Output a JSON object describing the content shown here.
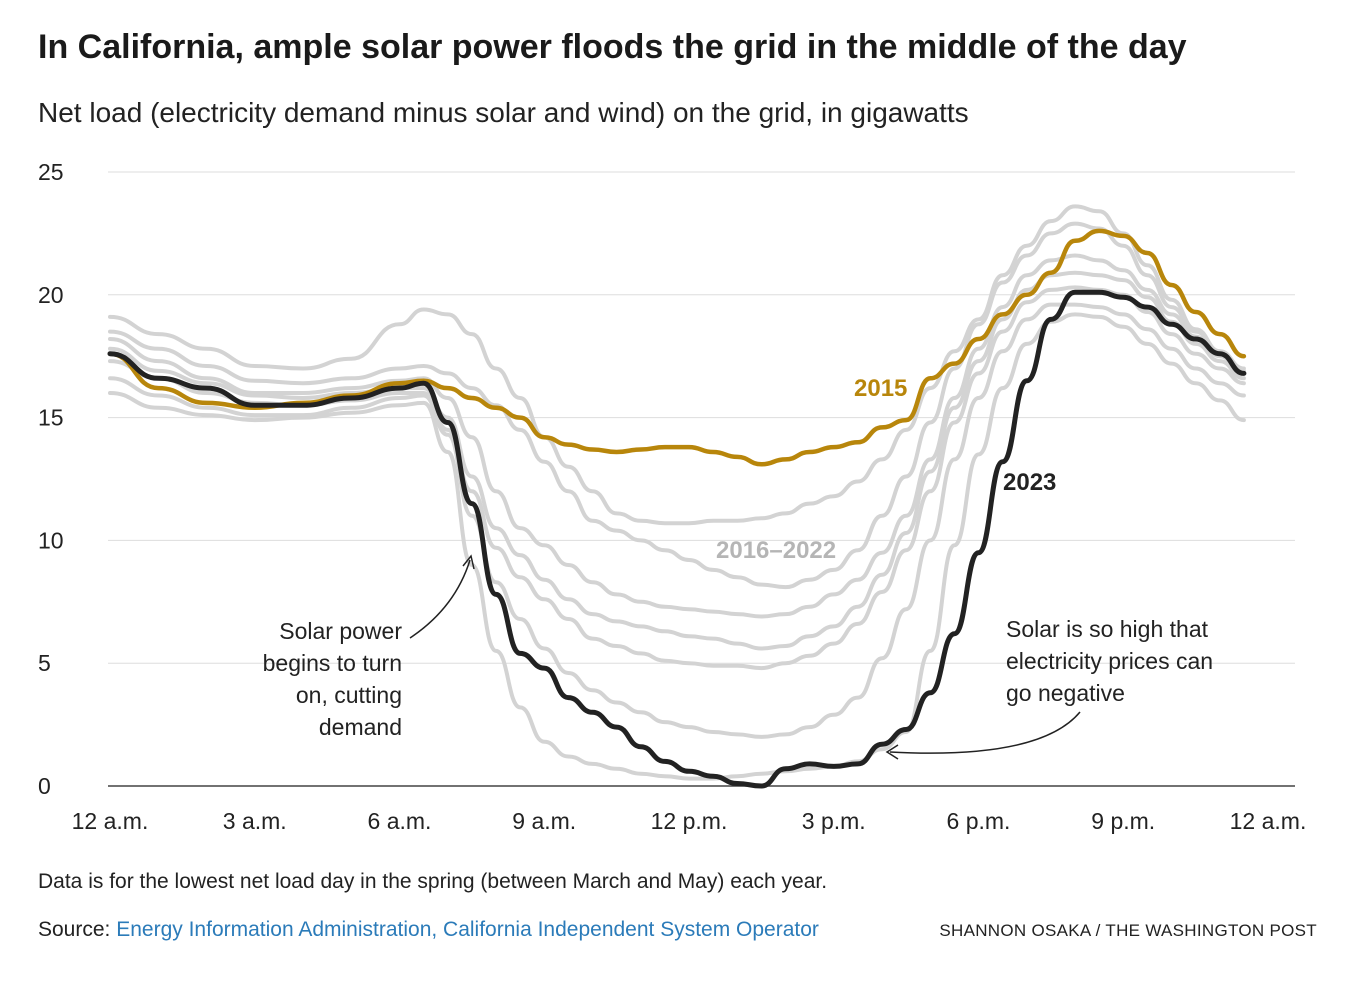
{
  "header": {
    "title": "In California, ample solar power floods the grid in the middle of the day",
    "subtitle": "Net load (electricity demand minus solar and wind) on the grid, in gigawatts"
  },
  "footer": {
    "note": "Data is for the lowest net load day in the spring (between March and May) each year.",
    "source_prefix": "Source: ",
    "source_link": "Energy Information Administration, California Independent System Operator",
    "credit": "SHANNON OSAKA / THE WASHINGTON POST"
  },
  "colors": {
    "line_2015": "#b8860b",
    "line_2023": "#222222",
    "line_other": "#d3d3d3",
    "grid": "#dddddd",
    "label_other": "#b5b5b5"
  },
  "chart_data": {
    "type": "line",
    "title": "In California, ample solar power floods the grid in the middle of the day",
    "subtitle": "Net load (electricity demand minus solar and wind) on the grid, in gigawatts",
    "xlabel": "",
    "ylabel": "",
    "x_unit": "hours after midnight",
    "xlim": [
      0,
      24
    ],
    "ylim": [
      0,
      25
    ],
    "x_ticks": [
      {
        "value": 0,
        "label": "12 a.m."
      },
      {
        "value": 3,
        "label": "3 a.m."
      },
      {
        "value": 6,
        "label": "6 a.m."
      },
      {
        "value": 9,
        "label": "9 a.m."
      },
      {
        "value": 12,
        "label": "12 p.m."
      },
      {
        "value": 15,
        "label": "3 p.m."
      },
      {
        "value": 18,
        "label": "6 p.m."
      },
      {
        "value": 21,
        "label": "9 p.m."
      },
      {
        "value": 24,
        "label": "12 a.m."
      }
    ],
    "y_ticks": [
      0,
      5,
      10,
      15,
      20,
      25
    ],
    "grid": true,
    "series_labels": {
      "2015": "2015",
      "2023": "2023",
      "2016_2022": "2016–2022"
    },
    "x": [
      0,
      1,
      2,
      3,
      4,
      5,
      6,
      6.5,
      7,
      7.5,
      8,
      8.5,
      9,
      9.5,
      10,
      10.5,
      11,
      11.5,
      12,
      12.5,
      13,
      13.5,
      14,
      14.5,
      15,
      15.5,
      16,
      16.5,
      17,
      17.5,
      18,
      18.5,
      19,
      19.5,
      20,
      20.5,
      21,
      21.5,
      22,
      22.5,
      23,
      23.5
    ],
    "series": [
      {
        "key": "2015",
        "emphasis": "gold",
        "values": [
          17.6,
          16.2,
          15.6,
          15.4,
          15.6,
          15.9,
          16.4,
          16.5,
          16.2,
          15.8,
          15.4,
          15.0,
          14.2,
          13.9,
          13.7,
          13.6,
          13.7,
          13.8,
          13.8,
          13.6,
          13.4,
          13.1,
          13.3,
          13.6,
          13.8,
          14.0,
          14.6,
          14.9,
          16.6,
          17.2,
          18.2,
          19.2,
          20.0,
          20.9,
          22.2,
          22.6,
          22.4,
          21.7,
          20.4,
          19.3,
          18.4,
          17.5
        ]
      },
      {
        "key": "2023",
        "emphasis": "black",
        "values": [
          17.6,
          16.6,
          16.2,
          15.5,
          15.5,
          15.8,
          16.2,
          16.4,
          14.8,
          11.5,
          7.8,
          5.4,
          4.8,
          3.6,
          3.0,
          2.4,
          1.6,
          1.0,
          0.6,
          0.4,
          0.1,
          0.0,
          0.7,
          0.9,
          0.8,
          0.9,
          1.7,
          2.3,
          3.8,
          6.2,
          9.5,
          13.2,
          16.5,
          19.0,
          20.1,
          20.1,
          19.9,
          19.5,
          18.8,
          18.2,
          17.6,
          16.8
        ]
      },
      {
        "key": "other_1",
        "values": [
          19.1,
          18.4,
          17.8,
          17.1,
          17.0,
          17.4,
          18.8,
          19.4,
          19.2,
          18.4,
          17.0,
          15.8,
          14.2,
          13.0,
          12.0,
          11.1,
          10.8,
          10.7,
          10.7,
          10.8,
          10.8,
          10.9,
          11.1,
          11.5,
          11.8,
          12.4,
          13.3,
          14.5,
          16.2,
          17.7,
          19.0,
          20.8,
          22.0,
          23.0,
          23.6,
          23.4,
          22.5,
          21.2,
          19.8,
          18.6,
          17.7,
          17.0
        ]
      },
      {
        "key": "other_2",
        "values": [
          18.5,
          17.8,
          17.1,
          16.5,
          16.4,
          16.6,
          17.0,
          17.1,
          16.8,
          16.2,
          15.5,
          14.5,
          13.2,
          12.0,
          10.8,
          10.4,
          10.0,
          9.6,
          9.2,
          8.8,
          8.5,
          8.2,
          8.1,
          8.4,
          8.8,
          9.6,
          11.0,
          12.6,
          14.8,
          17.0,
          18.8,
          20.5,
          21.6,
          22.5,
          22.9,
          22.7,
          22.0,
          20.8,
          19.5,
          18.5,
          17.7,
          16.9
        ]
      },
      {
        "key": "other_3",
        "values": [
          18.2,
          17.3,
          16.6,
          16.0,
          16.0,
          16.2,
          16.5,
          16.6,
          15.8,
          14.2,
          12.0,
          10.5,
          9.8,
          9.0,
          8.3,
          7.8,
          7.5,
          7.3,
          7.2,
          7.1,
          7.0,
          6.9,
          7.0,
          7.3,
          7.8,
          8.4,
          9.5,
          11.0,
          13.3,
          15.8,
          17.8,
          19.5,
          20.8,
          21.4,
          21.6,
          21.4,
          21.0,
          20.2,
          19.2,
          18.3,
          17.5,
          16.8
        ]
      },
      {
        "key": "other_4",
        "values": [
          17.8,
          16.9,
          16.4,
          15.9,
          15.8,
          16.0,
          16.2,
          16.2,
          15.0,
          12.6,
          10.5,
          9.4,
          8.4,
          7.6,
          7.0,
          6.7,
          6.5,
          6.3,
          6.1,
          6.0,
          5.8,
          5.6,
          5.7,
          6.1,
          6.5,
          7.3,
          8.6,
          10.3,
          12.8,
          15.4,
          17.3,
          19.0,
          20.2,
          20.8,
          20.9,
          20.8,
          20.6,
          19.9,
          18.9,
          18.0,
          17.3,
          16.6
        ]
      },
      {
        "key": "other_5",
        "values": [
          17.3,
          16.6,
          16.0,
          15.6,
          15.5,
          15.7,
          16.0,
          16.0,
          14.5,
          12.0,
          9.7,
          8.5,
          7.6,
          6.8,
          6.0,
          5.7,
          5.4,
          5.1,
          5.0,
          4.9,
          4.9,
          4.8,
          5.0,
          5.3,
          5.8,
          6.6,
          7.9,
          9.6,
          12.0,
          14.8,
          16.8,
          18.5,
          19.7,
          20.2,
          20.3,
          20.2,
          20.0,
          19.3,
          18.4,
          17.6,
          17.0,
          16.4
        ]
      },
      {
        "key": "other_6",
        "values": [
          16.6,
          15.9,
          15.4,
          15.1,
          15.1,
          15.4,
          15.8,
          15.9,
          14.3,
          11.0,
          8.3,
          6.8,
          5.6,
          4.6,
          3.9,
          3.4,
          3.0,
          2.6,
          2.4,
          2.2,
          2.1,
          2.0,
          2.1,
          2.4,
          2.9,
          3.6,
          5.2,
          7.2,
          10.0,
          13.3,
          15.8,
          17.7,
          19.0,
          19.6,
          19.6,
          19.5,
          19.2,
          18.6,
          17.8,
          17.0,
          16.4,
          15.9
        ]
      },
      {
        "key": "other_7",
        "values": [
          16.0,
          15.4,
          15.1,
          14.9,
          15.0,
          15.2,
          15.5,
          15.6,
          13.6,
          9.0,
          5.5,
          3.2,
          1.8,
          1.2,
          0.9,
          0.7,
          0.5,
          0.4,
          0.3,
          0.3,
          0.4,
          0.5,
          0.6,
          0.7,
          0.8,
          1.0,
          1.5,
          2.2,
          5.5,
          9.8,
          13.5,
          16.2,
          18.0,
          18.9,
          19.2,
          19.1,
          18.7,
          18.0,
          17.2,
          16.4,
          15.7,
          14.9
        ]
      }
    ]
  },
  "annotations": {
    "solar_on": [
      "Solar power",
      "begins to turn",
      "on, cutting",
      "demand"
    ],
    "negative": [
      "Solar is so high that",
      "electricity prices can",
      "go negative"
    ]
  }
}
